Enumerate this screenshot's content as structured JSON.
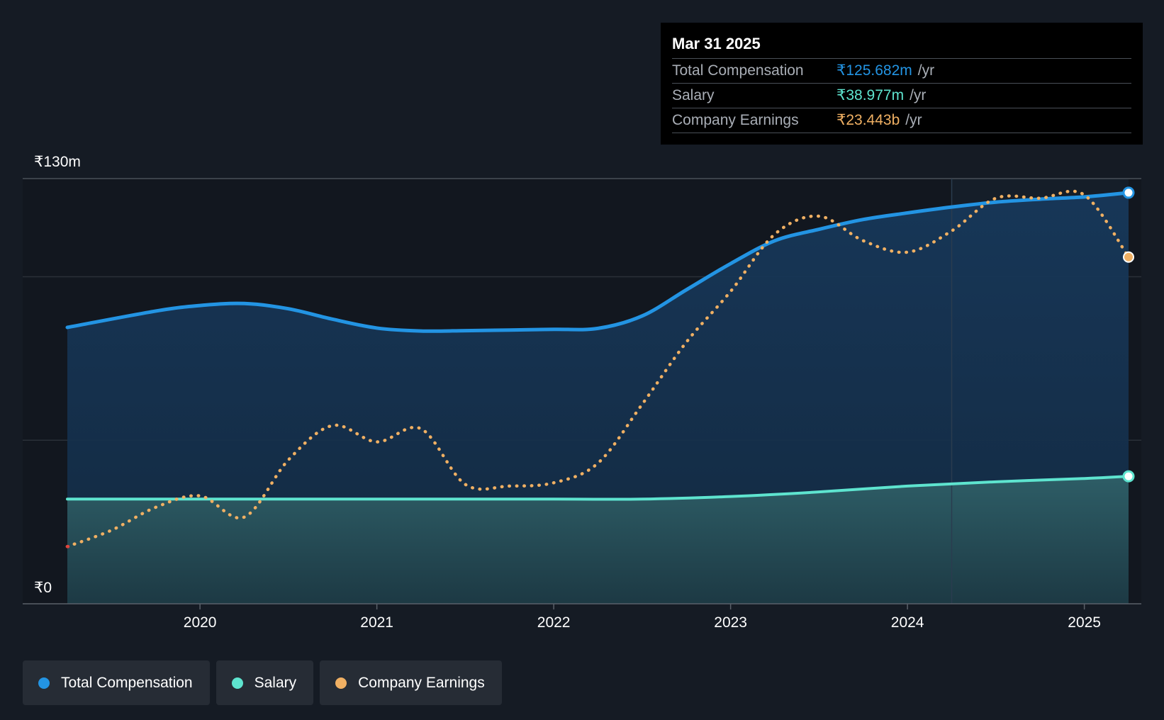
{
  "tooltip": {
    "date": "Mar 31 2025",
    "rows": [
      {
        "label": "Total Compensation",
        "value": "₹125.682m",
        "unit": "/yr"
      },
      {
        "label": "Salary",
        "value": "₹38.977m",
        "unit": "/yr"
      },
      {
        "label": "Company Earnings",
        "value": "₹23.443b",
        "unit": "/yr"
      }
    ]
  },
  "legend": [
    {
      "label": "Total Compensation",
      "color": "#2394e3"
    },
    {
      "label": "Salary",
      "color": "#5ee4cf"
    },
    {
      "label": "Company Earnings",
      "color": "#f0b063"
    }
  ],
  "colors": {
    "background": "#151b24",
    "total": "#2394e3",
    "salary": "#5ee4cf",
    "earnings": "#f0b063",
    "negative": "#e0433c"
  },
  "chart_data": {
    "type": "line",
    "title": "",
    "xlabel": "",
    "ylabel": "",
    "y_axis_labels": [
      "₹130m",
      "₹0"
    ],
    "ylim": [
      0,
      130
    ],
    "xlim": [
      2019.25,
      2025.25
    ],
    "x_ticks": [
      2020,
      2021,
      2022,
      2023,
      2024,
      2025
    ],
    "x_tick_labels": [
      "2020",
      "2021",
      "2022",
      "2023",
      "2024",
      "2025"
    ],
    "forecast_start": 2024.25,
    "grid": true,
    "series": [
      {
        "name": "Total Compensation",
        "unit": "₹m",
        "style": "solid-area",
        "points": [
          [
            2019.25,
            84.5
          ],
          [
            2019.75,
            89.5
          ],
          [
            2020.0,
            91.2
          ],
          [
            2020.25,
            91.8
          ],
          [
            2020.5,
            90.2
          ],
          [
            2020.75,
            87.0
          ],
          [
            2021.0,
            84.3
          ],
          [
            2021.25,
            83.4
          ],
          [
            2021.5,
            83.5
          ],
          [
            2021.75,
            83.7
          ],
          [
            2022.0,
            83.9
          ],
          [
            2022.25,
            84.2
          ],
          [
            2022.5,
            88.0
          ],
          [
            2022.75,
            96.0
          ],
          [
            2023.0,
            104.0
          ],
          [
            2023.25,
            111.0
          ],
          [
            2023.5,
            114.5
          ],
          [
            2023.75,
            117.5
          ],
          [
            2024.0,
            119.5
          ],
          [
            2024.25,
            121.3
          ],
          [
            2024.5,
            122.8
          ],
          [
            2024.75,
            123.7
          ],
          [
            2025.0,
            124.4
          ],
          [
            2025.25,
            125.682
          ]
        ]
      },
      {
        "name": "Salary",
        "unit": "₹m",
        "style": "solid-area",
        "points": [
          [
            2019.25,
            32.0
          ],
          [
            2020.0,
            32.0
          ],
          [
            2021.0,
            32.0
          ],
          [
            2022.0,
            32.0
          ],
          [
            2022.5,
            32.0
          ],
          [
            2023.0,
            32.8
          ],
          [
            2023.5,
            34.2
          ],
          [
            2024.0,
            36.0
          ],
          [
            2024.5,
            37.3
          ],
          [
            2025.0,
            38.3
          ],
          [
            2025.25,
            38.977
          ]
        ]
      },
      {
        "name": "Company Earnings",
        "unit": "scaled",
        "style": "dotted",
        "points": [
          [
            2019.25,
            17.5
          ],
          [
            2019.5,
            22.5
          ],
          [
            2019.75,
            29.5
          ],
          [
            2020.0,
            33.0
          ],
          [
            2020.25,
            26.5
          ],
          [
            2020.5,
            44.0
          ],
          [
            2020.75,
            54.5
          ],
          [
            2021.0,
            49.5
          ],
          [
            2021.25,
            53.5
          ],
          [
            2021.5,
            36.5
          ],
          [
            2021.75,
            36.0
          ],
          [
            2022.0,
            37.0
          ],
          [
            2022.25,
            43.0
          ],
          [
            2022.5,
            61.0
          ],
          [
            2022.75,
            80.0
          ],
          [
            2023.0,
            95.5
          ],
          [
            2023.25,
            113.0
          ],
          [
            2023.5,
            118.5
          ],
          [
            2023.75,
            111.0
          ],
          [
            2024.0,
            107.5
          ],
          [
            2024.25,
            114.0
          ],
          [
            2024.5,
            124.0
          ],
          [
            2024.75,
            124.0
          ],
          [
            2025.0,
            125.0
          ],
          [
            2025.25,
            106.0
          ]
        ]
      }
    ]
  }
}
